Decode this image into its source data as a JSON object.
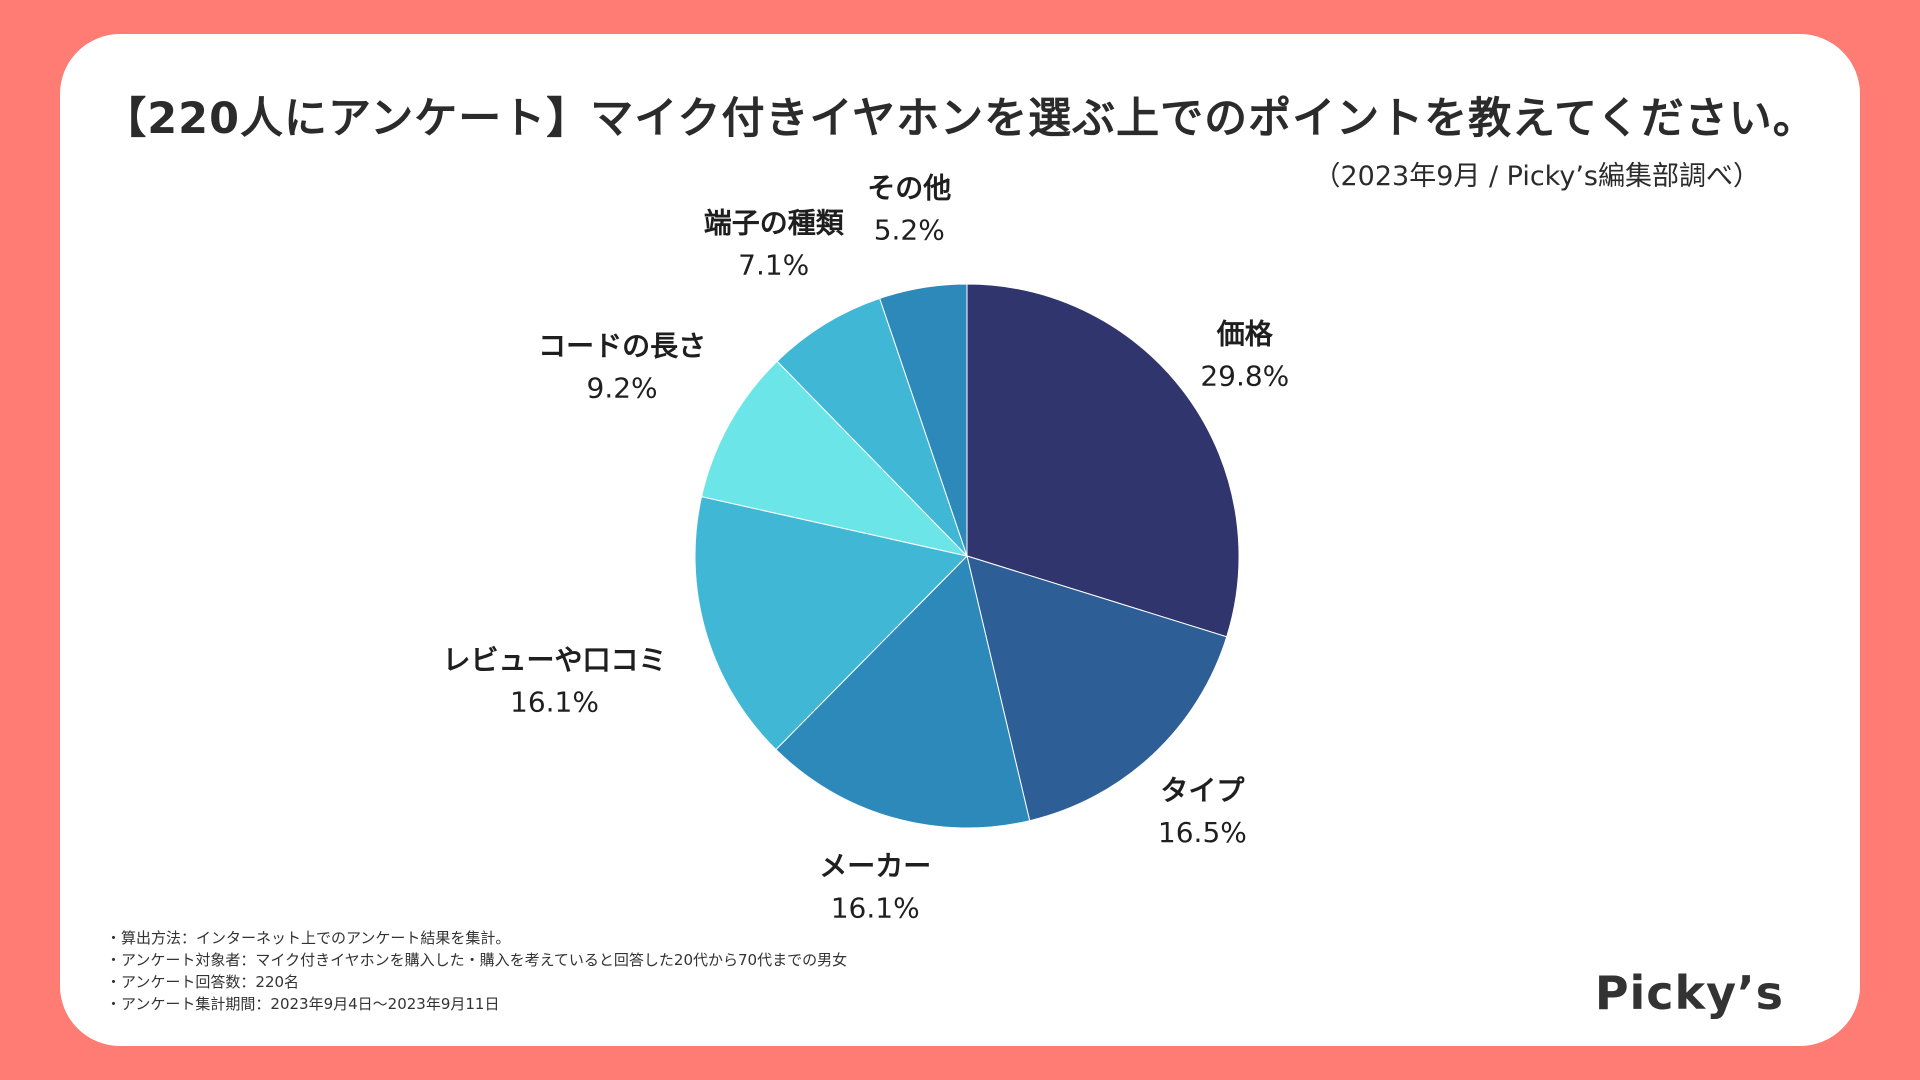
{
  "header": {
    "title": "【220人にアンケート】マイク付きイヤホンを選ぶ上でのポイントを教えてください。",
    "source": "（2023年9月 / Picky’s編集部調べ）"
  },
  "chart_data": {
    "type": "pie",
    "title": "【220人にアンケート】マイク付きイヤホンを選ぶ上でのポイントを教えてください。",
    "unit": "%",
    "start": "12 o'clock, clockwise",
    "slices": [
      {
        "label": "価格",
        "value": 29.8,
        "display": "29.8%",
        "color": "#31356D"
      },
      {
        "label": "タイプ",
        "value": 16.5,
        "display": "16.5%",
        "color": "#2E5E96"
      },
      {
        "label": "メーカー",
        "value": 16.1,
        "display": "16.1%",
        "color": "#2C89BA"
      },
      {
        "label": "レビューや口コミ",
        "value": 16.1,
        "display": "16.1%",
        "color": "#41B7D6"
      },
      {
        "label": "コードの長さ",
        "value": 9.2,
        "display": "9.2%",
        "color": "#6BE5E8"
      },
      {
        "label": "端子の種類",
        "value": 7.1,
        "display": "7.1%",
        "color": "#41B7D6"
      },
      {
        "label": "その他",
        "value": 5.2,
        "display": "5.2%",
        "color": "#2C89BA"
      }
    ]
  },
  "notes": [
    "・算出方法：インターネット上でのアンケート結果を集計。",
    "・アンケート対象者：マイク付きイヤホンを購入した・購入を考えていると回答した20代から70代までの男女",
    "・アンケート回答数：220名",
    "・アンケート集計期間：2023年9月4日〜2023年9月11日"
  ],
  "brand": {
    "logo_text": "Picky’s"
  }
}
